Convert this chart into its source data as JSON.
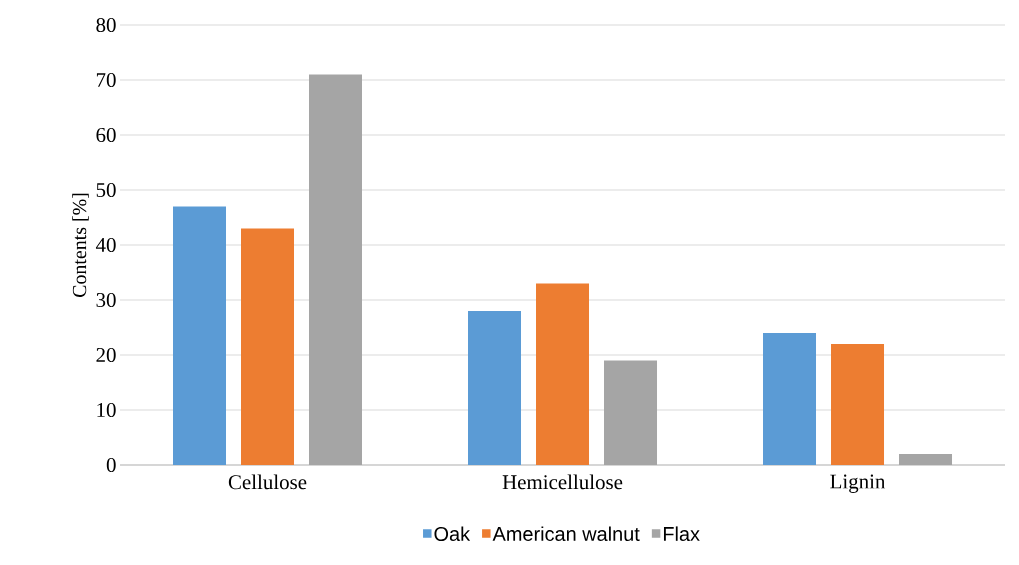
{
  "chart_data": {
    "type": "bar",
    "ylabel": "Contents [%]",
    "categories": [
      "Cellulose",
      "Hemicellulose",
      "Lignin"
    ],
    "series": [
      {
        "name": "Oak",
        "color": "#5b9bd5",
        "values": [
          47,
          28,
          24
        ]
      },
      {
        "name": "American walnut",
        "color": "#ed7d31",
        "values": [
          43,
          33,
          22
        ]
      },
      {
        "name": "Flax",
        "color": "#a5a5a5",
        "values": [
          71,
          19,
          2
        ]
      }
    ],
    "ylim": [
      0,
      80
    ],
    "yticks": [
      0,
      10,
      20,
      30,
      40,
      50,
      60,
      70,
      80
    ],
    "grid": "y",
    "legend": "bottom"
  }
}
